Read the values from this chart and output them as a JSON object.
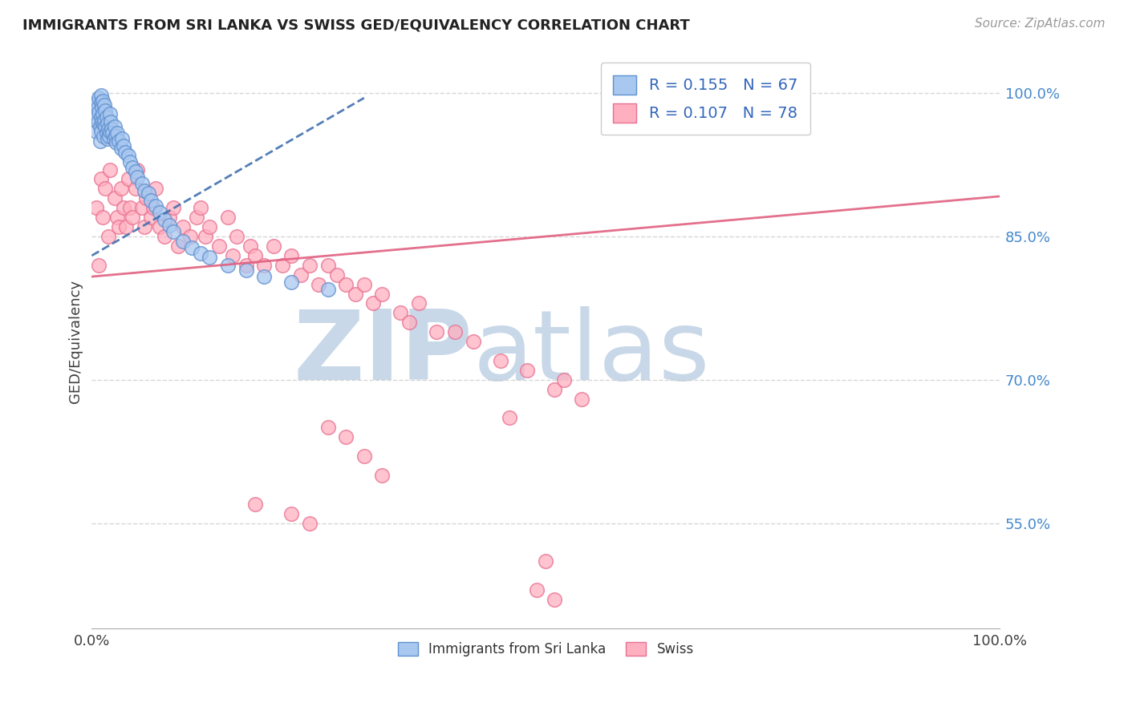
{
  "title": "IMMIGRANTS FROM SRI LANKA VS SWISS GED/EQUIVALENCY CORRELATION CHART",
  "source_text": "Source: ZipAtlas.com",
  "ylabel": "GED/Equivalency",
  "xmin": 0.0,
  "xmax": 1.0,
  "ymin": 0.44,
  "ymax": 1.04,
  "ytick_positions": [
    0.55,
    0.7,
    0.85,
    1.0
  ],
  "ytick_labels": [
    "55.0%",
    "70.0%",
    "85.0%",
    "100.0%"
  ],
  "blue_R": 0.155,
  "blue_N": 67,
  "pink_R": 0.107,
  "pink_N": 78,
  "blue_face_color": "#a8c8f0",
  "blue_edge_color": "#6090d0",
  "pink_face_color": "#ffb0c0",
  "pink_edge_color": "#e87090",
  "blue_line_color": "#4070b0",
  "pink_line_color": "#e06080",
  "grid_color": "#cccccc",
  "watermark_zip": "ZIP",
  "watermark_atlas": "atlas",
  "watermark_color": "#c8d8e8",
  "legend_label_blue": "Immigrants from Sri Lanka",
  "legend_label_pink": "Swiss",
  "blue_scatter_x": [
    0.005,
    0.005,
    0.006,
    0.007,
    0.007,
    0.008,
    0.008,
    0.009,
    0.009,
    0.01,
    0.01,
    0.01,
    0.01,
    0.011,
    0.011,
    0.012,
    0.012,
    0.013,
    0.013,
    0.014,
    0.014,
    0.015,
    0.015,
    0.016,
    0.016,
    0.017,
    0.017,
    0.018,
    0.019,
    0.02,
    0.02,
    0.021,
    0.022,
    0.023,
    0.024,
    0.025,
    0.026,
    0.027,
    0.028,
    0.03,
    0.032,
    0.033,
    0.035,
    0.037,
    0.04,
    0.042,
    0.045,
    0.048,
    0.05,
    0.055,
    0.058,
    0.062,
    0.065,
    0.07,
    0.075,
    0.08,
    0.085,
    0.09,
    0.1,
    0.11,
    0.12,
    0.13,
    0.15,
    0.17,
    0.19,
    0.22,
    0.26
  ],
  "blue_scatter_y": [
    0.975,
    0.96,
    0.99,
    0.985,
    0.97,
    0.995,
    0.98,
    0.965,
    0.95,
    0.998,
    0.99,
    0.975,
    0.96,
    0.985,
    0.97,
    0.992,
    0.978,
    0.968,
    0.955,
    0.988,
    0.972,
    0.982,
    0.965,
    0.975,
    0.958,
    0.968,
    0.952,
    0.962,
    0.955,
    0.978,
    0.96,
    0.97,
    0.962,
    0.958,
    0.952,
    0.965,
    0.955,
    0.948,
    0.958,
    0.95,
    0.942,
    0.952,
    0.945,
    0.938,
    0.935,
    0.928,
    0.922,
    0.918,
    0.912,
    0.905,
    0.898,
    0.895,
    0.888,
    0.882,
    0.875,
    0.868,
    0.862,
    0.855,
    0.845,
    0.838,
    0.832,
    0.828,
    0.82,
    0.815,
    0.808,
    0.802,
    0.795
  ],
  "pink_scatter_x": [
    0.005,
    0.008,
    0.01,
    0.012,
    0.015,
    0.018,
    0.02,
    0.025,
    0.028,
    0.03,
    0.032,
    0.035,
    0.038,
    0.04,
    0.042,
    0.045,
    0.048,
    0.05,
    0.055,
    0.058,
    0.06,
    0.065,
    0.068,
    0.07,
    0.075,
    0.08,
    0.085,
    0.09,
    0.095,
    0.1,
    0.108,
    0.115,
    0.12,
    0.125,
    0.13,
    0.14,
    0.15,
    0.155,
    0.16,
    0.17,
    0.175,
    0.18,
    0.19,
    0.2,
    0.21,
    0.22,
    0.23,
    0.24,
    0.25,
    0.26,
    0.27,
    0.28,
    0.29,
    0.3,
    0.31,
    0.32,
    0.34,
    0.35,
    0.36,
    0.38,
    0.4,
    0.42,
    0.45,
    0.48,
    0.51,
    0.52,
    0.54,
    0.46,
    0.26,
    0.28,
    0.3,
    0.32,
    0.18,
    0.22,
    0.24,
    0.5,
    0.49,
    0.51
  ],
  "pink_scatter_y": [
    0.88,
    0.82,
    0.91,
    0.87,
    0.9,
    0.85,
    0.92,
    0.89,
    0.87,
    0.86,
    0.9,
    0.88,
    0.86,
    0.91,
    0.88,
    0.87,
    0.9,
    0.92,
    0.88,
    0.86,
    0.89,
    0.87,
    0.88,
    0.9,
    0.86,
    0.85,
    0.87,
    0.88,
    0.84,
    0.86,
    0.85,
    0.87,
    0.88,
    0.85,
    0.86,
    0.84,
    0.87,
    0.83,
    0.85,
    0.82,
    0.84,
    0.83,
    0.82,
    0.84,
    0.82,
    0.83,
    0.81,
    0.82,
    0.8,
    0.82,
    0.81,
    0.8,
    0.79,
    0.8,
    0.78,
    0.79,
    0.77,
    0.76,
    0.78,
    0.75,
    0.75,
    0.74,
    0.72,
    0.71,
    0.69,
    0.7,
    0.68,
    0.66,
    0.65,
    0.64,
    0.62,
    0.6,
    0.57,
    0.56,
    0.55,
    0.51,
    0.48,
    0.47
  ],
  "blue_line_x": [
    0.0,
    0.3
  ],
  "blue_line_y_start": 0.83,
  "blue_line_y_end": 0.995,
  "pink_line_x": [
    0.0,
    1.0
  ],
  "pink_line_y_start": 0.808,
  "pink_line_y_end": 0.892
}
